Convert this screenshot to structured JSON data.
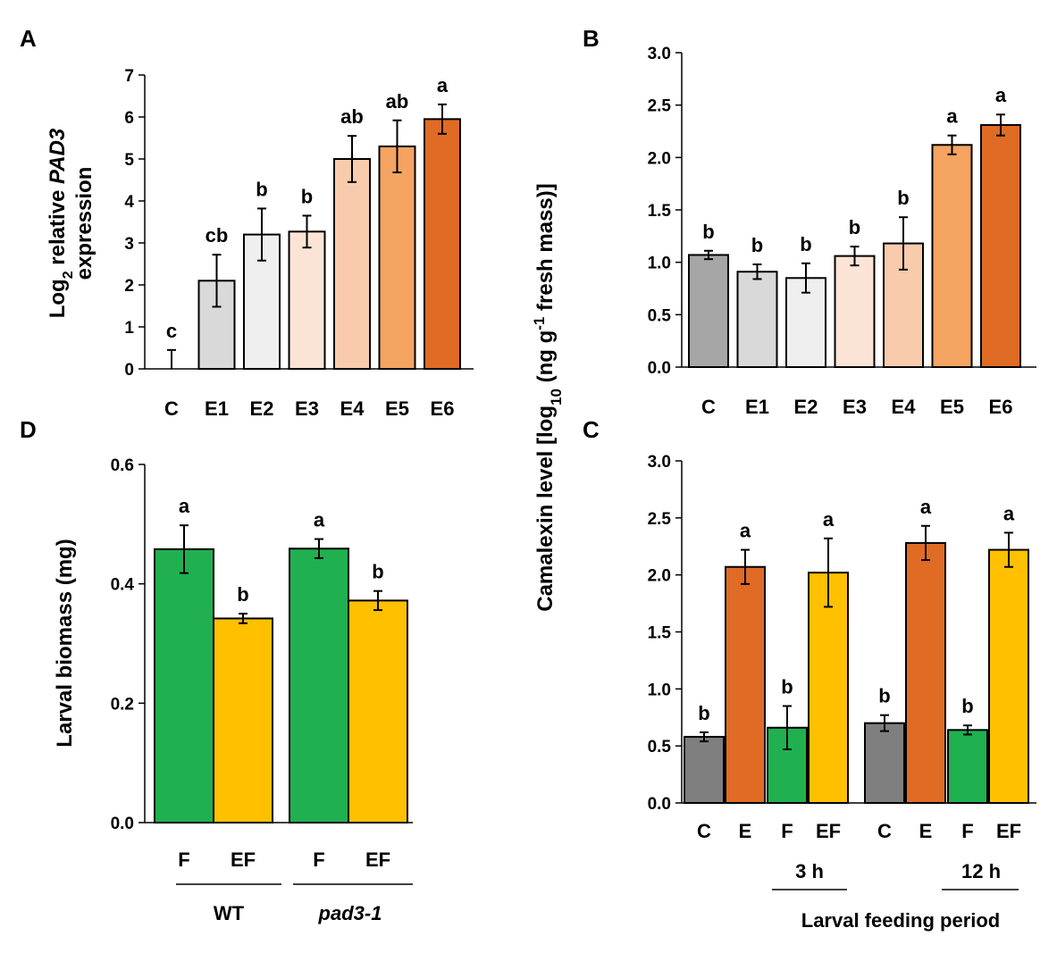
{
  "shared_ylabel": {
    "camalexin_prefix": "Camalexin level [log",
    "camalexin_sub": "10",
    "camalexin_mid": " (ng g",
    "camalexin_sup": "-1",
    "camalexin_suffix": " fresh mass)]"
  },
  "chart_data": [
    {
      "panel": "A",
      "type": "bar",
      "ylabel_line1_prefix": "Log",
      "ylabel_line1_sub": "2",
      "ylabel_line1_mid": " relative ",
      "ylabel_line1_gene": "PAD3",
      "ylabel_line2": "expression",
      "categories": [
        "C",
        "E1",
        "E2",
        "E3",
        "E4",
        "E5",
        "E6"
      ],
      "values": [
        0,
        2.1,
        3.2,
        3.27,
        5.0,
        5.3,
        5.95
      ],
      "errors": [
        0.45,
        0.62,
        0.62,
        0.38,
        0.55,
        0.62,
        0.35
      ],
      "letters": [
        "c",
        "cb",
        "b",
        "b",
        "ab",
        "ab",
        "a"
      ],
      "colors": [
        "#d9d9d9",
        "#d9d9d9",
        "#efefef",
        "#fbe4d5",
        "#f8cbad",
        "#f4a460",
        "#e06b24"
      ],
      "ylim": [
        0,
        7
      ],
      "yticks": [
        "0",
        "1",
        "2",
        "3",
        "4",
        "5",
        "6",
        "7"
      ]
    },
    {
      "panel": "B",
      "type": "bar",
      "categories": [
        "C",
        "E1",
        "E2",
        "E3",
        "E4",
        "E5",
        "E6"
      ],
      "values": [
        1.07,
        0.91,
        0.85,
        1.06,
        1.18,
        2.12,
        2.31
      ],
      "errors": [
        0.04,
        0.07,
        0.14,
        0.09,
        0.25,
        0.09,
        0.1
      ],
      "letters": [
        "b",
        "b",
        "b",
        "b",
        "b",
        "a",
        "a"
      ],
      "colors": [
        "#a6a6a6",
        "#d9d9d9",
        "#efefef",
        "#fbe4d5",
        "#f8cbad",
        "#f4a460",
        "#e06b24"
      ],
      "ylim": [
        0,
        3
      ],
      "yticks": [
        "0.0",
        "0.5",
        "1.0",
        "1.5",
        "2.0",
        "2.5",
        "3.0"
      ]
    },
    {
      "panel": "C",
      "type": "bar",
      "categories": [
        "C",
        "E",
        "F",
        "EF",
        "C",
        "E",
        "F",
        "EF"
      ],
      "values": [
        0.58,
        2.07,
        0.66,
        2.02,
        0.7,
        2.28,
        0.64,
        2.22
      ],
      "errors": [
        0.04,
        0.15,
        0.19,
        0.3,
        0.07,
        0.15,
        0.04,
        0.15
      ],
      "letters": [
        "b",
        "a",
        "b",
        "a",
        "b",
        "a",
        "b",
        "a"
      ],
      "colors": [
        "#7f7f7f",
        "#e06b24",
        "#20b050",
        "#ffc000",
        "#7f7f7f",
        "#e06b24",
        "#20b050",
        "#ffc000"
      ],
      "groups": [
        "3 h",
        "12 h"
      ],
      "xlabel": "Larval feeding period",
      "ylim": [
        0,
        3
      ],
      "yticks": [
        "0.0",
        "0.5",
        "1.0",
        "1.5",
        "2.0",
        "2.5",
        "3.0"
      ]
    },
    {
      "panel": "D",
      "type": "bar",
      "categories": [
        "F",
        "EF",
        "F",
        "EF"
      ],
      "values": [
        0.458,
        0.342,
        0.459,
        0.372
      ],
      "errors": [
        0.04,
        0.008,
        0.016,
        0.016
      ],
      "letters": [
        "a",
        "b",
        "a",
        "b"
      ],
      "colors": [
        "#20b050",
        "#ffc000",
        "#20b050",
        "#ffc000"
      ],
      "groups": [
        "WT",
        "pad3-1"
      ],
      "ylabel": "Larval biomass (mg)",
      "ylim": [
        0,
        0.6
      ],
      "yticks": [
        "0.0",
        "0.2",
        "0.4",
        "0.6"
      ]
    }
  ]
}
